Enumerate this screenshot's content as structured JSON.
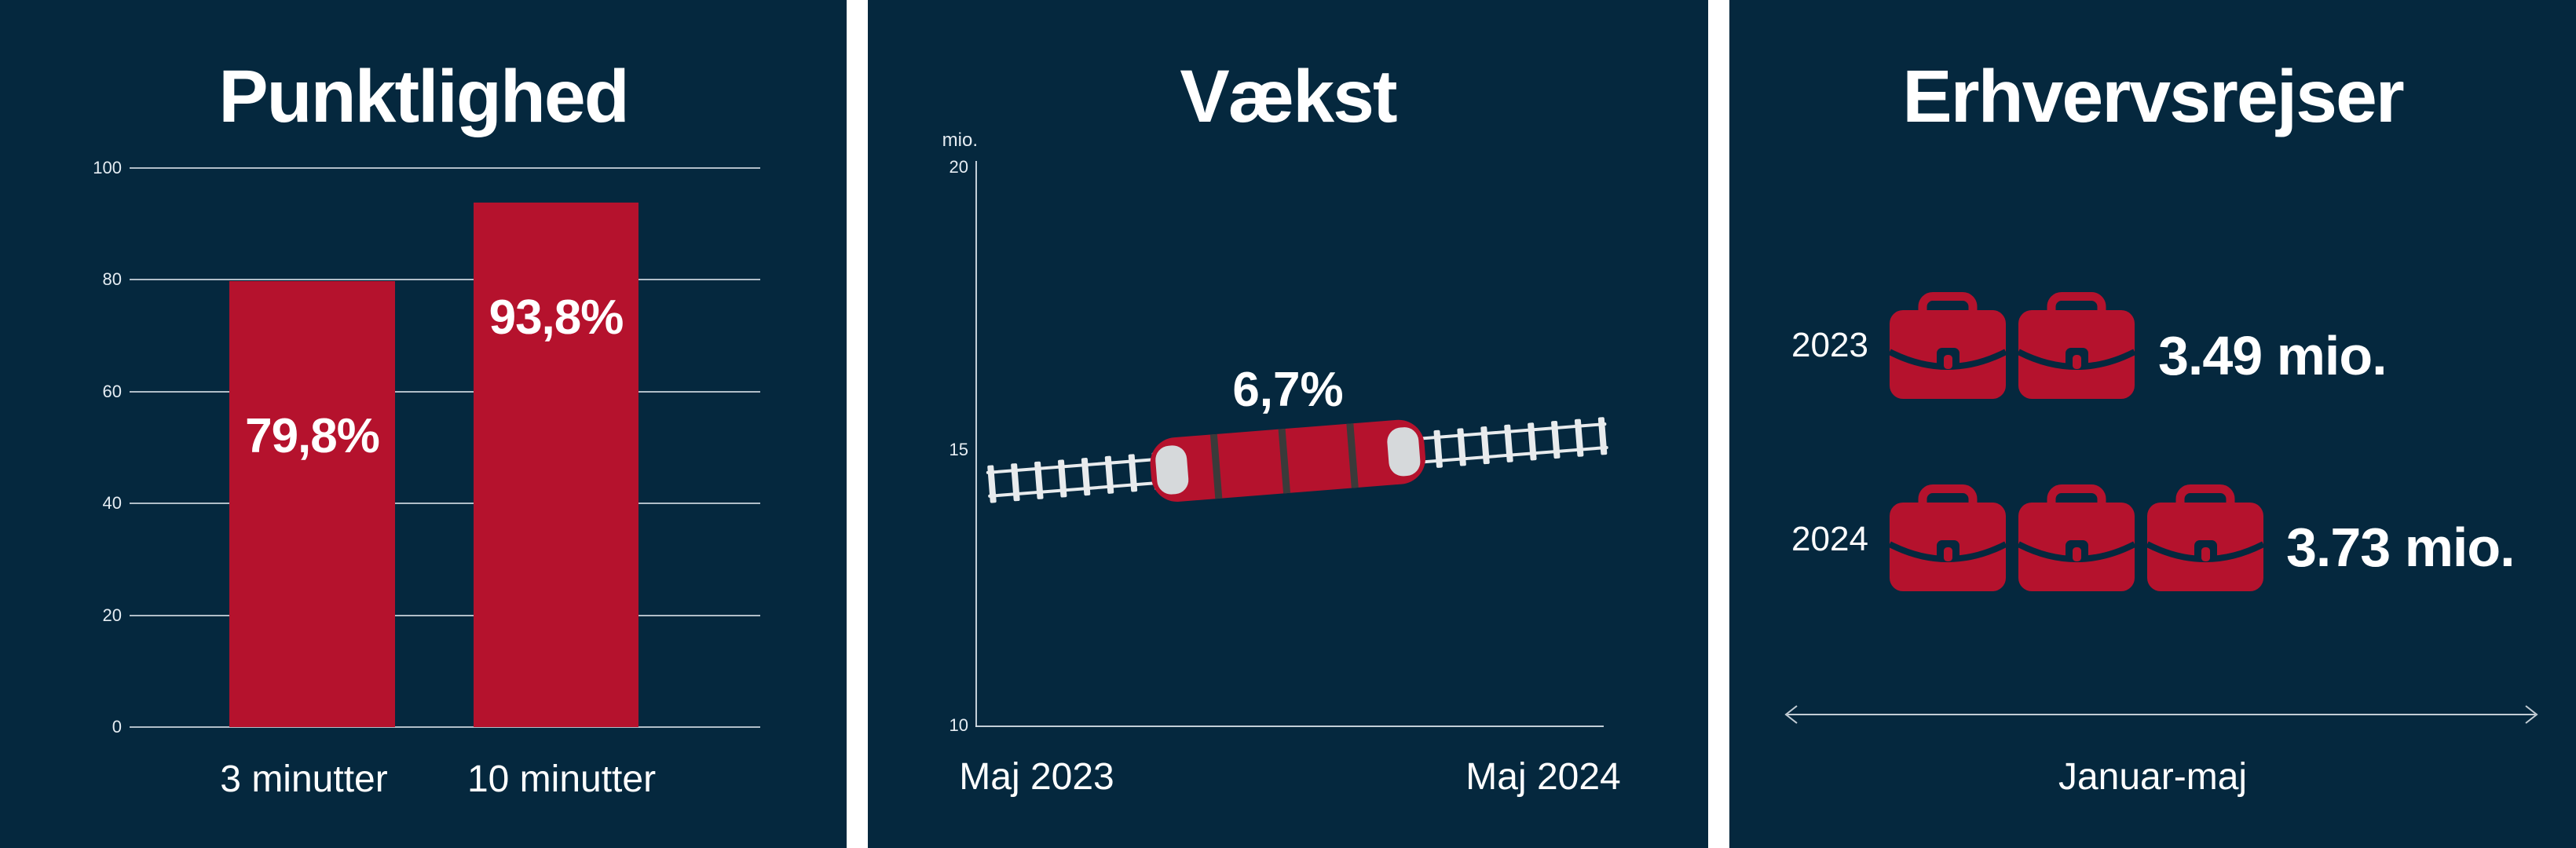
{
  "colors": {
    "navy": "#05283E",
    "red": "#B5122D",
    "white": "#FFFFFF",
    "grid": "#DEE6EE",
    "rail": "#E8EBED",
    "windshield": "#D6D9DB",
    "separator": "#3A3A3A",
    "arrow": "#C3CDD5"
  },
  "punctuality": {
    "title": "Punktlighed",
    "y_ticks": [
      "100",
      "80",
      "60",
      "40",
      "20",
      "0"
    ],
    "bars": [
      {
        "category": "3 minutter",
        "value": 79.8,
        "label": "79,8%"
      },
      {
        "category": "10 minutter",
        "value": 93.8,
        "label": "93,8%"
      }
    ]
  },
  "growth": {
    "title": "Vækst",
    "unit_label": "mio.",
    "y_ticks": [
      "20",
      "15",
      "10"
    ],
    "annotation": "6,7%",
    "x_labels": [
      "Maj 2023",
      "Maj 2024"
    ]
  },
  "business": {
    "title": "Erhvervsrejser",
    "rows": [
      {
        "year": "2023",
        "briefcase_count": 2,
        "value": "3.49 mio."
      },
      {
        "year": "2024",
        "briefcase_count": 3,
        "value": "3.73 mio."
      }
    ],
    "period_label": "Januar-maj"
  },
  "chart_data": [
    {
      "type": "bar",
      "title": "Punktlighed",
      "categories": [
        "3 minutter",
        "10 minutter"
      ],
      "values": [
        79.8,
        93.8
      ],
      "value_labels": [
        "79,8%",
        "93,8%"
      ],
      "xlabel": "",
      "ylabel": "",
      "ylim": [
        0,
        100
      ],
      "y_ticks": [
        100,
        80,
        60,
        40,
        20,
        0
      ],
      "grid": true,
      "bar_color": "#B5122D",
      "unit": "%"
    },
    {
      "type": "line",
      "title": "Vækst",
      "x": [
        "Maj 2023",
        "Maj 2024"
      ],
      "values": [
        14.3,
        15.3
      ],
      "ylabel": "mio.",
      "ylim": [
        10,
        20
      ],
      "y_ticks": [
        20,
        15,
        10
      ],
      "annotation": "6,7%",
      "grid": false,
      "style": "railway-track-with-red-train-illustration"
    },
    {
      "type": "pictogram",
      "title": "Erhvervsrejser",
      "categories": [
        "2023",
        "2024"
      ],
      "values": [
        3.49,
        3.73
      ],
      "value_labels": [
        "3.49 mio.",
        "3.73 mio."
      ],
      "icon": "briefcase",
      "icon_counts": [
        2,
        3
      ],
      "xlabel": "Januar-maj",
      "unit": "mio."
    }
  ]
}
